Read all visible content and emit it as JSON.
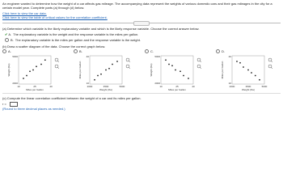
{
  "problem": {
    "intro": "An engineer wanted to determine how the weight of a car affects gas mileage. The accompanying data represent the weights of various domestic cars and their gas mileages in the city for a certain model year. Complete parts (a) through (d) below.",
    "links": [
      "Click here to view the car data.",
      "Click here to view the table of critical values for the correlation coefficient."
    ]
  },
  "part_a": {
    "prompt": "(a) Determine which variable is the likely explanatory variable and which is the likely response variable. Choose the correct answer below.",
    "selected": 0,
    "options": [
      {
        "letter": "A.",
        "text": "The explanatory variable is the weight and the response variable is the miles per gallon."
      },
      {
        "letter": "B.",
        "text": "The explanatory variable is the miles per gallon and the response variable is the weight."
      }
    ]
  },
  "part_b": {
    "prompt": "(b) Draw a scatter diagram of the data. Choose the correct graph below.",
    "options": [
      {
        "letter": "A.",
        "y_label": "Weight (lbs)",
        "x_label": "Miles per Gallon",
        "y_ticks": [
          "5000",
          "2000"
        ],
        "x_ticks": [
          "10",
          "25",
          "40"
        ]
      },
      {
        "letter": "B.",
        "y_label": "Miles per Gallon",
        "x_label": "Weight (lbs)",
        "y_ticks": [
          "40",
          "10"
        ],
        "x_ticks": [
          "2000",
          "3500",
          "5000"
        ]
      },
      {
        "letter": "C.",
        "y_label": "Weight (lbs)",
        "x_label": "Miles per Gallon",
        "y_ticks": [
          "5000",
          "2000"
        ],
        "x_ticks": [
          "10",
          "25",
          "40"
        ]
      },
      {
        "letter": "D.",
        "y_label": "Miles per Gallon",
        "x_label": "Weight (lbs)",
        "y_ticks": [
          "40",
          "10"
        ],
        "x_ticks": [
          "2000",
          "3500",
          "5000"
        ]
      }
    ]
  },
  "part_c": {
    "prompt": "(c) Compute the linear correlation coefficient between the weight of a car and its miles per gallon.",
    "input_label": "r =",
    "note": "(Round to three decimal places as needed.)"
  }
}
